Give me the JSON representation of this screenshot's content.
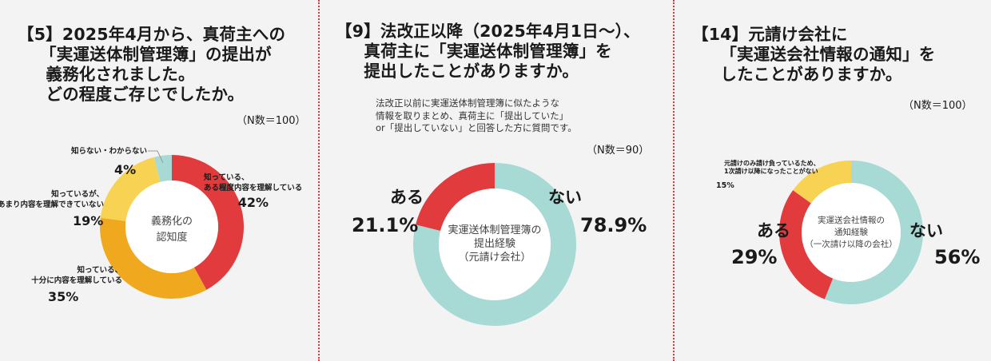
{
  "panels": [
    {
      "title": "【5】2025年4月から、真荷主への\n　 「実運送体制管理簿」の提出が\n　  義務化されました。\n　  どの程度ご存じでしたか。",
      "n_label": "（N数＝100）"
    },
    {
      "title": "【9】法改正以降（2025年4月1日～）、\n　  真荷主に「実運送体制管理簿」を\n　  提出したことがありますか。",
      "note": "法改正以前に実運送体制管理簿に似たような\n情報を取りまとめ、真荷主に「提出していた」\nor「提出していない」と回答した方に質問です。",
      "n_label": "（N数＝90）"
    },
    {
      "title": "【14】元請け会社に\n　  「実運送会社情報の通知」を\n　  したことがありますか。",
      "n_label": "（N数＝100）"
    }
  ],
  "chart_data": [
    {
      "type": "pie",
      "center_label": [
        "義務化の",
        "認知度"
      ],
      "categories": [
        "知っている、ある程度内容を理解している",
        "知っている、十分に内容を理解している",
        "知っているが、あまり内容を理解できていない",
        "知らない・わからない"
      ],
      "label_lines": [
        [
          "知っている、",
          "ある程度内容を理解している"
        ],
        [
          "知っている、",
          "十分に内容を理解している"
        ],
        [
          "知っているが、",
          "あまり内容を理解できていない"
        ],
        [
          "知らない・わからない"
        ]
      ],
      "values": [
        42,
        35,
        19,
        4
      ],
      "value_labels": [
        "42%",
        "35%",
        "19%",
        "4%"
      ],
      "colors": [
        "#e23b3e",
        "#f0a91e",
        "#f8d253",
        "#a7dad4"
      ]
    },
    {
      "type": "pie",
      "center_label": [
        "実運送体制管理簿の",
        "提出経験",
        "（元請け会社）"
      ],
      "categories": [
        "ない",
        "ある"
      ],
      "values": [
        78.9,
        21.1
      ],
      "value_labels": [
        "78.9%",
        "21.1%"
      ],
      "colors": [
        "#a7dad4",
        "#e23b3e"
      ]
    },
    {
      "type": "pie",
      "center_label": [
        "実運送会社情報の",
        "通知経験",
        "（一次請け以降の会社）"
      ],
      "categories": [
        "ない",
        "ある",
        "元請けのみ請け負っているため、1次請け以降になったことがない"
      ],
      "label_lines": [
        [
          "ない"
        ],
        [
          "ある"
        ],
        [
          "元請けのみ請け負っているため、",
          "1次請け以降になったことがない"
        ]
      ],
      "values": [
        56,
        29,
        15
      ],
      "value_labels": [
        "56%",
        "29%",
        "15%"
      ],
      "colors": [
        "#a7dad4",
        "#e23b3e",
        "#f8d253"
      ]
    }
  ]
}
